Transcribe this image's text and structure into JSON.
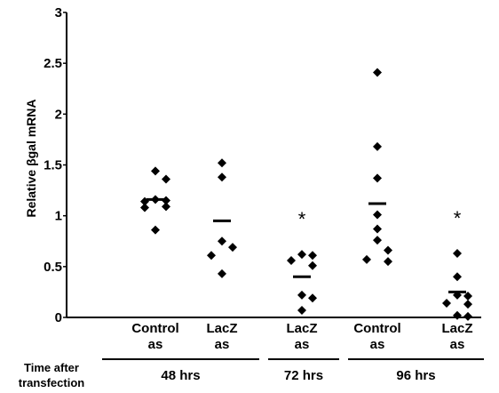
{
  "chart_data": {
    "type": "scatter",
    "ylabel": "Relative βgal mRNA",
    "ylim": [
      0,
      3
    ],
    "yticks": [
      "0",
      "0.5",
      "1",
      "1.5",
      "2",
      "2.5",
      "3"
    ],
    "grid": false,
    "categories": [
      {
        "label_top": "Control",
        "label_bottom": "as",
        "mean": 1.16,
        "points": [
          1.44,
          1.36,
          1.16,
          1.15,
          1.14,
          1.09,
          1.08,
          0.86
        ],
        "star": ""
      },
      {
        "label_top": "LacZ",
        "label_bottom": "as",
        "mean": 0.95,
        "points": [
          1.52,
          1.38,
          0.75,
          0.69,
          0.61,
          0.43
        ],
        "star": ""
      },
      {
        "label_top": "LacZ",
        "label_bottom": "as",
        "mean": 0.4,
        "points": [
          0.62,
          0.61,
          0.56,
          0.51,
          0.22,
          0.19,
          0.07
        ],
        "star": "*"
      },
      {
        "label_top": "Control",
        "label_bottom": "as",
        "mean": 1.12,
        "points": [
          2.41,
          1.68,
          1.37,
          1.01,
          0.87,
          0.76,
          0.66,
          0.57,
          0.55
        ],
        "star": ""
      },
      {
        "label_top": "LacZ",
        "label_bottom": "as",
        "mean": 0.25,
        "points": [
          0.63,
          0.4,
          0.22,
          0.21,
          0.14,
          0.13,
          0.02,
          0.01
        ],
        "star": "*"
      }
    ],
    "time_label_line1": "Time after",
    "time_label_line2": "transfection",
    "groups": [
      {
        "label": "48 hrs",
        "from": 0,
        "to": 1
      },
      {
        "label": "72 hrs",
        "from": 2,
        "to": 2
      },
      {
        "label": "96 hrs",
        "from": 3,
        "to": 4
      }
    ]
  }
}
